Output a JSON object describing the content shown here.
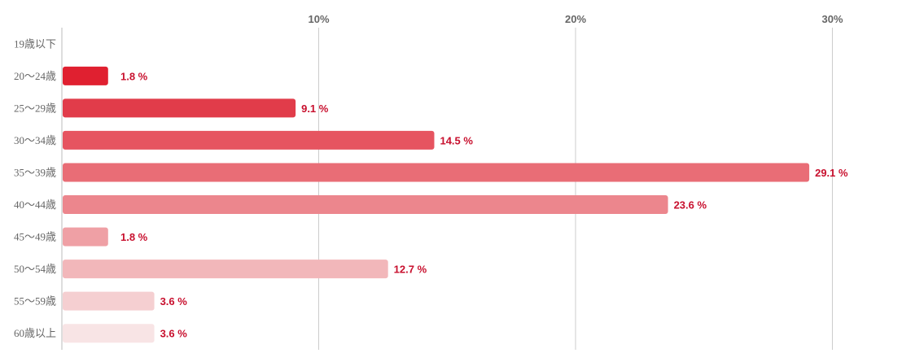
{
  "chart_data": {
    "type": "bar",
    "orientation": "horizontal",
    "title": "",
    "xlabel": "",
    "ylabel": "",
    "categories": [
      "19歳以下",
      "20〜24歳",
      "25〜29歳",
      "30〜34歳",
      "35〜39歳",
      "40〜44歳",
      "45〜49歳",
      "50〜54歳",
      "55〜59歳",
      "60歳以上"
    ],
    "values": [
      0,
      1.8,
      9.1,
      14.5,
      29.1,
      23.6,
      1.8,
      12.7,
      3.6,
      3.6
    ],
    "value_labels": [
      "",
      "1.8 %",
      "9.1 %",
      "14.5 %",
      "29.1 %",
      "23.6 %",
      "1.8 %",
      "12.7 %",
      "3.6 %",
      "3.6 %"
    ],
    "xlim": [
      0,
      33
    ],
    "x_ticks": [
      10,
      20,
      30
    ],
    "x_tick_labels": [
      "10%",
      "20%",
      "30%"
    ],
    "x_tick_position": "top",
    "grid": true,
    "legend": "none",
    "bar_colors": [
      "#e02030",
      "#e02030",
      "#e13c4a",
      "#e65460",
      "#e96d76",
      "#ec868d",
      "#efa0a5",
      "#f2b7ba",
      "#f5cfd1",
      "#f8e4e5"
    ],
    "label_color": "#c8102e",
    "grid_color": "#cccccc"
  }
}
